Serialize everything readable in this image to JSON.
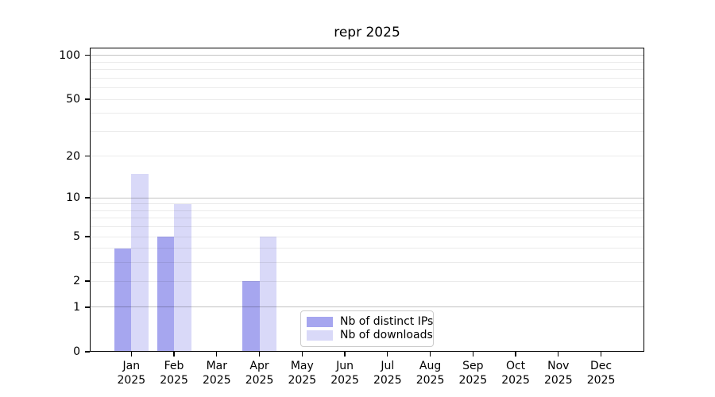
{
  "chart_data": {
    "type": "bar",
    "title": "repr 2025",
    "categories": [
      "Jan",
      "Feb",
      "Mar",
      "Apr",
      "May",
      "Jun",
      "Jul",
      "Aug",
      "Sep",
      "Oct",
      "Nov",
      "Dec"
    ],
    "category_year": "2025",
    "series": [
      {
        "name": "Nb of distinct IPs",
        "color": "#a6a6ef",
        "values": [
          4,
          5,
          0,
          2,
          0,
          0,
          0,
          0,
          0,
          0,
          0,
          0
        ]
      },
      {
        "name": "Nb of downloads",
        "color": "#d9d9f8",
        "values": [
          15,
          9,
          0,
          5,
          0,
          0,
          0,
          0,
          0,
          0,
          0,
          0
        ]
      }
    ],
    "y_axis": {
      "scale": "log1p",
      "tick_values": [
        0,
        1,
        2,
        5,
        10,
        20,
        50,
        100
      ],
      "gridline_values": [
        1,
        2,
        3,
        4,
        5,
        6,
        7,
        8,
        9,
        10,
        20,
        30,
        40,
        50,
        60,
        70,
        80,
        90,
        100
      ],
      "emphasized_gridline_values": [
        1,
        10,
        100
      ],
      "ylim": [
        0,
        113
      ],
      "grid": true,
      "grid_above_bars": true
    },
    "legend": {
      "position": "lower center",
      "entries": [
        "Nb of distinct IPs",
        "Nb of downloads"
      ]
    },
    "colors": {
      "grid_minor": "rgba(0,0,0,0.08)",
      "grid_major": "rgba(0,0,0,0.24)",
      "spine": "#000000",
      "text": "#000000"
    }
  }
}
